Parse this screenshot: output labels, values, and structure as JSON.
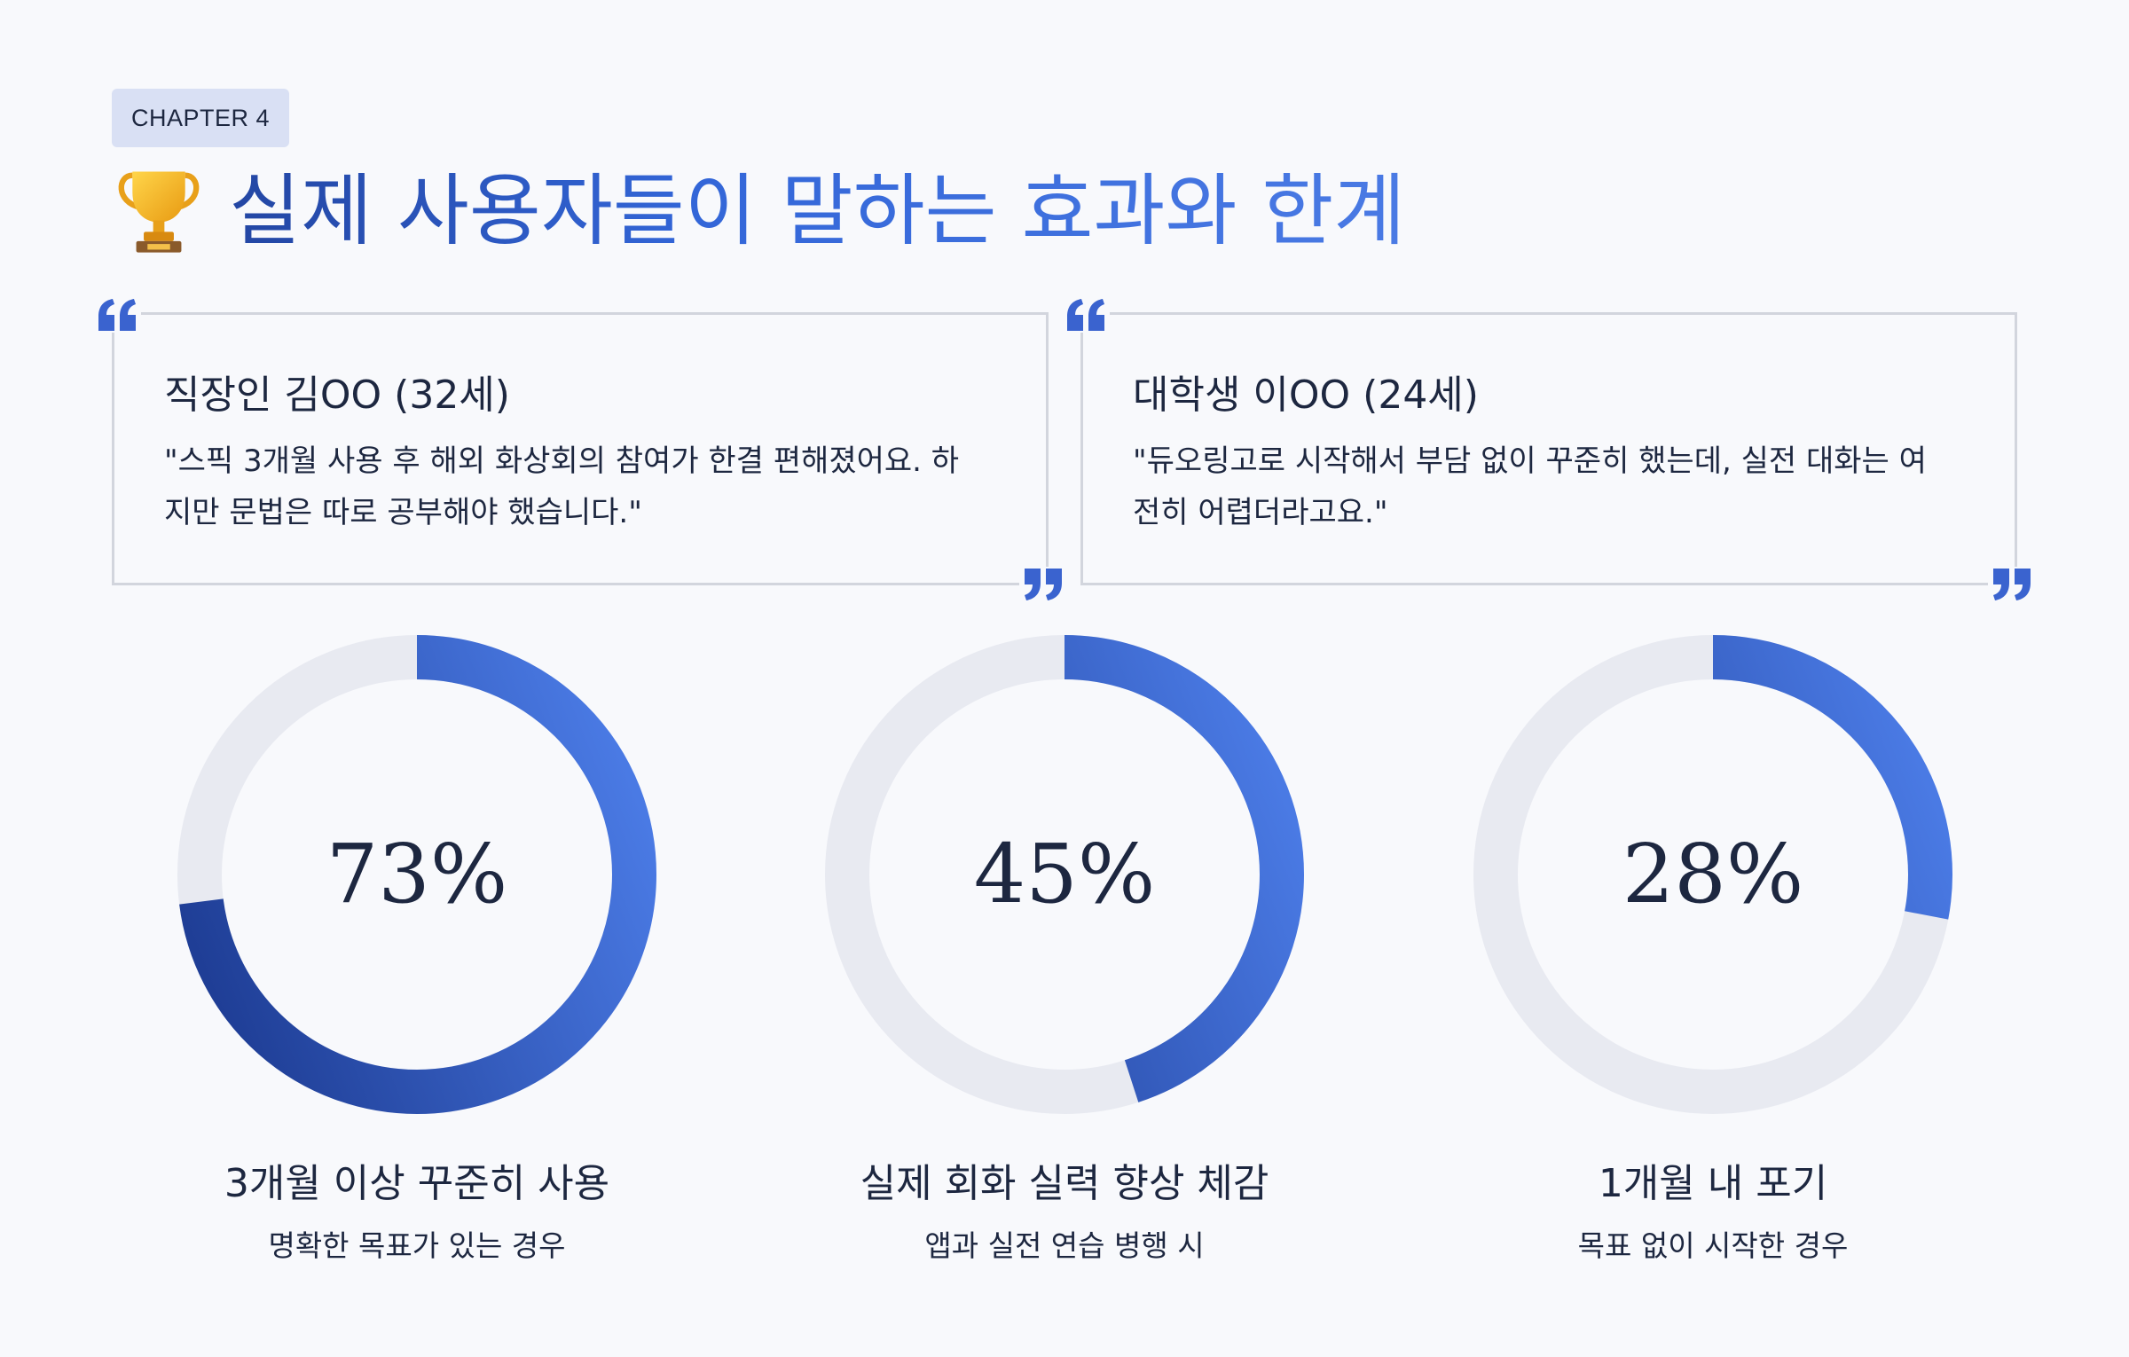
{
  "chapter_badge": "CHAPTER 4",
  "title": "실제 사용자들이 말하는 효과와 한계",
  "title_icon": "trophy-icon",
  "colors": {
    "accent_dark": "#1f3e96",
    "accent_light": "#4a7ae4",
    "track": "#e8eaf1",
    "text": "#1d2740",
    "card_border": "#d2d5dd"
  },
  "testimonials": [
    {
      "name": "직장인 김OO (32세)",
      "quote": "\"스픽 3개월 사용 후 해외 화상회의 참여가 한결 편해졌어요. 하지만 문법은 따로 공부해야 했습니다.\""
    },
    {
      "name": "대학생 이OO (24세)",
      "quote": "\"듀오링고로 시작해서 부담 없이 꾸준히 했는데, 실전 대화는 여전히 어렵더라고요.\""
    }
  ],
  "chart_data": {
    "type": "pie",
    "style": "donut",
    "items": [
      {
        "value": 73,
        "value_label": "73%",
        "label": "3개월 이상 꾸준히 사용",
        "sublabel": "명확한 목표가 있는 경우"
      },
      {
        "value": 45,
        "value_label": "45%",
        "label": "실제 회화 실력 향상 체감",
        "sublabel": "앱과 실전 연습 병행 시"
      },
      {
        "value": 28,
        "value_label": "28%",
        "label": "1개월 내 포기",
        "sublabel": "목표 없이 시작한 경우"
      }
    ]
  }
}
